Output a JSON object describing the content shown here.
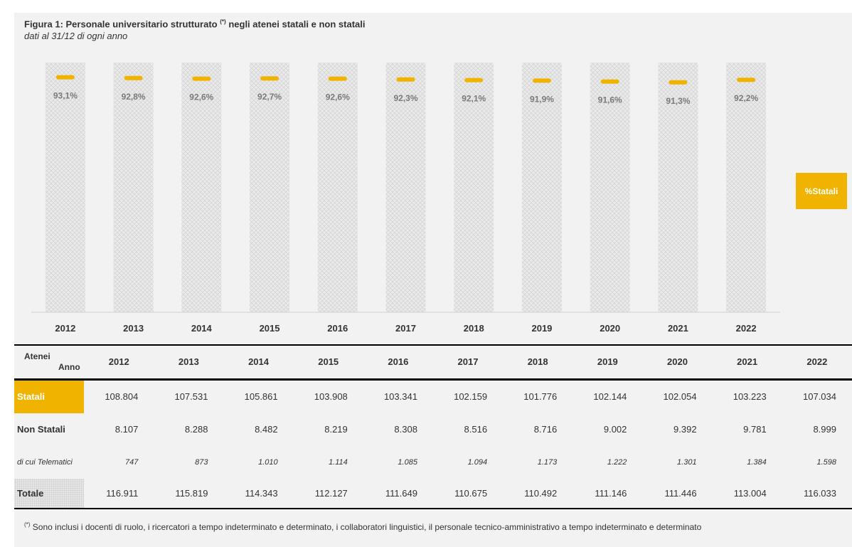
{
  "figure": {
    "title_main": "Figura 1: Personale universitario strutturato",
    "title_sup": "(*)",
    "title_rest": "negli atenei statali e non statali",
    "subtitle": "dati al 31/12 di ogni anno"
  },
  "chart_data": {
    "type": "line",
    "title": "Figura 1: Personale universitario strutturato (*) negli atenei statali e non statali",
    "subtitle": "dati al 31/12 di ogni anno",
    "categories": [
      "2012",
      "2013",
      "2014",
      "2015",
      "2016",
      "2017",
      "2018",
      "2019",
      "2020",
      "2021",
      "2022"
    ],
    "series": [
      {
        "name": "%Statali",
        "values": [
          93.1,
          92.8,
          92.6,
          92.7,
          92.6,
          92.3,
          92.1,
          91.9,
          91.6,
          91.3,
          92.2
        ],
        "labels": [
          "93,1%",
          "92,8%",
          "92,6%",
          "92,7%",
          "92,6%",
          "92,3%",
          "92,1%",
          "91,9%",
          "91,6%",
          "91,3%",
          "92,2%"
        ],
        "color": "#f0b400",
        "marker": "dash"
      }
    ],
    "ylim": [
      0,
      100
    ],
    "legend": "right",
    "grid": false
  },
  "legend": {
    "label": "%Statali",
    "color": "#f0b400"
  },
  "table": {
    "corner_top": "Atenei",
    "corner_bottom": "Anno",
    "years": [
      "2012",
      "2013",
      "2014",
      "2015",
      "2016",
      "2017",
      "2018",
      "2019",
      "2020",
      "2021",
      "2022"
    ],
    "rows": [
      {
        "label": "Statali",
        "values": [
          "108.804",
          "107.531",
          "105.861",
          "103.908",
          "103.341",
          "102.159",
          "101.776",
          "102.144",
          "102.054",
          "103.223",
          "107.034"
        ]
      },
      {
        "label": "Non Statali",
        "values": [
          "8.107",
          "8.288",
          "8.482",
          "8.219",
          "8.308",
          "8.516",
          "8.716",
          "9.002",
          "9.392",
          "9.781",
          "8.999"
        ]
      },
      {
        "label": "di cui Telematici",
        "values": [
          "747",
          "873",
          "1.010",
          "1.114",
          "1.085",
          "1.094",
          "1.173",
          "1.222",
          "1.301",
          "1.384",
          "1.598"
        ]
      },
      {
        "label": "Totale",
        "values": [
          "116.911",
          "115.819",
          "114.343",
          "112.127",
          "111.649",
          "110.675",
          "110.492",
          "111.146",
          "111.446",
          "113.004",
          "116.033"
        ]
      }
    ]
  },
  "footnote": {
    "marker": "(*)",
    "text": "Sono inclusi i docenti di ruolo, i ricercatori a tempo indeterminato e determinato, i collaboratori linguistici, il  personale tecnico-amministrativo a tempo indeterminato e determinato"
  }
}
